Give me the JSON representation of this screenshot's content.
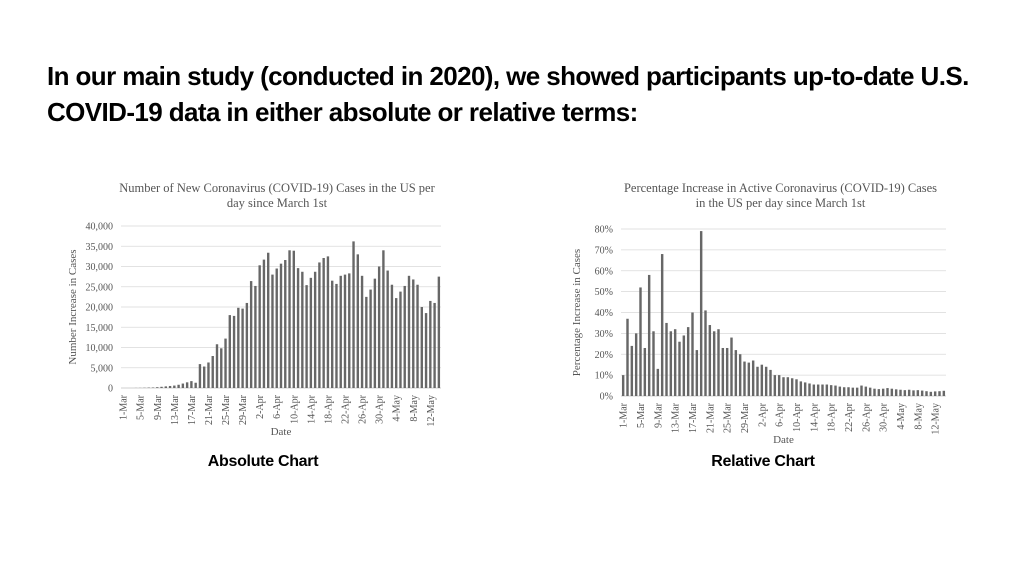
{
  "slide": {
    "headline": "In our main study (conducted in 2020), we showed participants up-to-date U.S. COVID-19 data in either absolute or relative terms:",
    "caption_absolute": "Absolute Chart",
    "caption_relative": "Relative Chart"
  },
  "colors": {
    "bar": "#676767",
    "grid": "#d9d9d9",
    "text": "#555555"
  },
  "chart_data": [
    {
      "type": "bar",
      "title": "Number of New Coronavirus (COVID-19) Cases in the US per day since March 1st",
      "xlabel": "Date",
      "ylabel": "Number Increase in Cases",
      "ylim": [
        0,
        40000
      ],
      "yticks": [
        0,
        5000,
        10000,
        15000,
        20000,
        25000,
        30000,
        35000,
        40000
      ],
      "ytick_labels": [
        "0",
        "5,000",
        "10,000",
        "15,000",
        "20,000",
        "25,000",
        "30,000",
        "35,000",
        "40,000"
      ],
      "xtick_labels": [
        "1-Mar",
        "5-Mar",
        "9-Mar",
        "13-Mar",
        "17-Mar",
        "21-Mar",
        "25-Mar",
        "29-Mar",
        "2-Apr",
        "6-Apr",
        "10-Apr",
        "14-Apr",
        "18-Apr",
        "22-Apr",
        "26-Apr",
        "30-Apr",
        "4-May",
        "8-May",
        "12-May"
      ],
      "grid": true,
      "values": [
        0,
        0,
        0,
        20,
        30,
        60,
        100,
        120,
        200,
        300,
        400,
        500,
        600,
        800,
        1100,
        1400,
        1700,
        1300,
        5900,
        5300,
        6300,
        7900,
        10800,
        9800,
        12200,
        18000,
        17800,
        19800,
        19600,
        21000,
        26400,
        25200,
        30300,
        31700,
        33400,
        28000,
        29500,
        30700,
        31600,
        34000,
        33900,
        29600,
        28700,
        25400,
        27200,
        28700,
        31000,
        32100,
        32500,
        26500,
        25700,
        27700,
        28000,
        28300,
        36200,
        33000,
        27700,
        22500,
        24300,
        27000,
        30000,
        34000,
        29000,
        25500,
        22200,
        23800,
        25200,
        27700,
        26800,
        25500,
        20000,
        18500,
        21500,
        21000,
        27500
      ]
    },
    {
      "type": "bar",
      "title": "Percentage Increase in Active Coronavirus (COVID-19) Cases in the US per day since March 1st",
      "xlabel": "Date",
      "ylabel": "Percentage Increase in Cases",
      "ylim": [
        0,
        80
      ],
      "yticks": [
        0,
        10,
        20,
        30,
        40,
        50,
        60,
        70,
        80
      ],
      "ytick_labels": [
        "0%",
        "10%",
        "20%",
        "30%",
        "40%",
        "50%",
        "60%",
        "70%",
        "80%"
      ],
      "xtick_labels": [
        "1-Mar",
        "5-Mar",
        "9-Mar",
        "13-Mar",
        "17-Mar",
        "21-Mar",
        "25-Mar",
        "29-Mar",
        "2-Apr",
        "6-Apr",
        "10-Apr",
        "14-Apr",
        "18-Apr",
        "22-Apr",
        "26-Apr",
        "30-Apr",
        "4-May",
        "8-May",
        "12-May"
      ],
      "grid": true,
      "values": [
        10,
        37,
        24,
        30,
        52,
        23,
        58,
        31,
        13,
        68,
        35,
        31,
        32,
        26,
        29,
        33,
        40,
        22,
        79,
        41,
        34,
        31,
        32,
        23,
        23,
        28,
        22,
        20,
        16.5,
        16,
        17,
        14,
        15,
        14,
        12.5,
        10,
        10,
        9,
        9,
        8.5,
        8,
        7,
        6.5,
        6,
        5.5,
        5.5,
        5.5,
        5.5,
        5.2,
        5,
        4.5,
        4.2,
        4.2,
        4,
        4,
        5,
        4.5,
        4,
        3.5,
        3.3,
        3.5,
        3.8,
        3.5,
        3.2,
        3,
        2.8,
        3,
        2.7,
        2.8,
        2.6,
        2.3,
        2,
        2.2,
        2.3,
        2.5
      ]
    }
  ]
}
